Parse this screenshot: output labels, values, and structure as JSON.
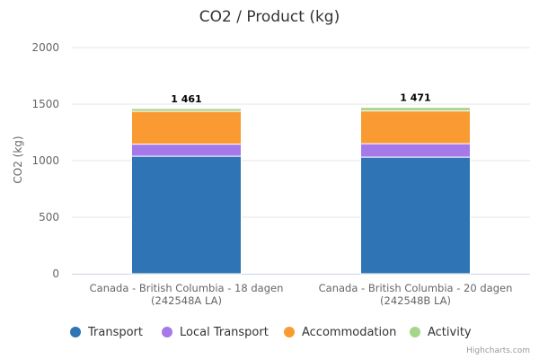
{
  "chart_data": {
    "type": "bar",
    "stacked": true,
    "title": "CO2 / Product (kg)",
    "ylabel": "CO2 (kg)",
    "xlabel": "",
    "ylim": [
      0,
      2000
    ],
    "yticks": [
      0,
      500,
      1000,
      1500,
      2000
    ],
    "grid": true,
    "legend_position": "bottom",
    "categories": [
      [
        "Canada - British Columbia - 18 dagen",
        "(242548A LA)"
      ],
      [
        "Canada - British Columbia - 20 dagen",
        "(242548B LA)"
      ]
    ],
    "series": [
      {
        "name": "Transport",
        "color": "#2f74b5",
        "values": [
          1039,
          1031
        ]
      },
      {
        "name": "Local Transport",
        "color": "#a579ea",
        "values": [
          107,
          119
        ]
      },
      {
        "name": "Accommodation",
        "color": "#f99b32",
        "values": [
          290,
          290
        ]
      },
      {
        "name": "Activity",
        "color": "#a6d68c",
        "values": [
          25,
          31
        ]
      }
    ],
    "totals": [
      "1 461",
      "1 471"
    ]
  },
  "credits": "Highcharts.com"
}
